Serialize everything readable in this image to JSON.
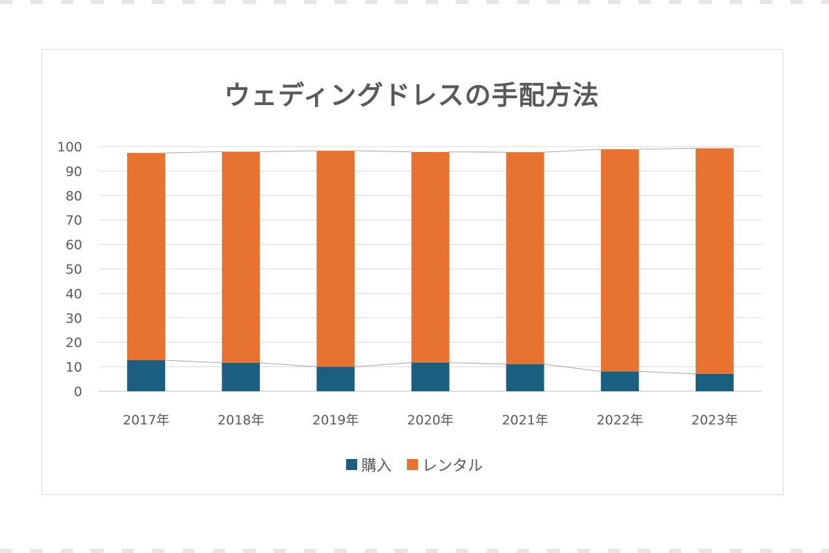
{
  "chart_data": {
    "type": "bar",
    "stacked": true,
    "title": "ウェディングドレスの手配方法",
    "categories": [
      "2017年",
      "2018年",
      "2019年",
      "2020年",
      "2021年",
      "2022年",
      "2023年"
    ],
    "series": [
      {
        "name": "購入",
        "color": "#1a5e80",
        "values": [
          12.7,
          11.6,
          10.0,
          11.7,
          11.1,
          8.1,
          7.1
        ]
      },
      {
        "name": "レンタル",
        "color": "#e87330",
        "values": [
          84.7,
          86.3,
          88.3,
          86.1,
          86.6,
          90.8,
          92.2
        ]
      }
    ],
    "ylim": [
      0,
      100
    ],
    "yticks": [
      0,
      10,
      20,
      30,
      40,
      50,
      60,
      70,
      80,
      90,
      100
    ],
    "grid": true,
    "series_lines": true,
    "legend_position": "bottom"
  }
}
